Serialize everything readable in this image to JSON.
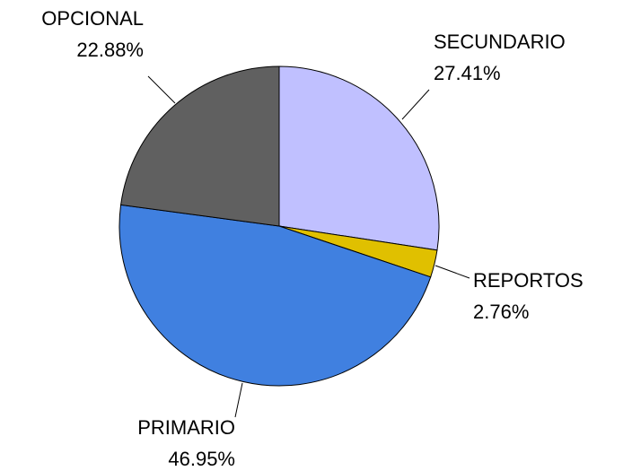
{
  "chart_data": {
    "type": "pie",
    "categories": [
      "SECUNDARIO",
      "REPORTOS",
      "PRIMARIO",
      "OPCIONAL"
    ],
    "values": [
      27.41,
      2.76,
      46.95,
      22.88
    ],
    "value_labels": [
      "27.41%",
      "2.76%",
      "46.95%",
      "22.88%"
    ],
    "colors": [
      "#c0c0ff",
      "#e0c000",
      "#4080e0",
      "#606060"
    ]
  }
}
